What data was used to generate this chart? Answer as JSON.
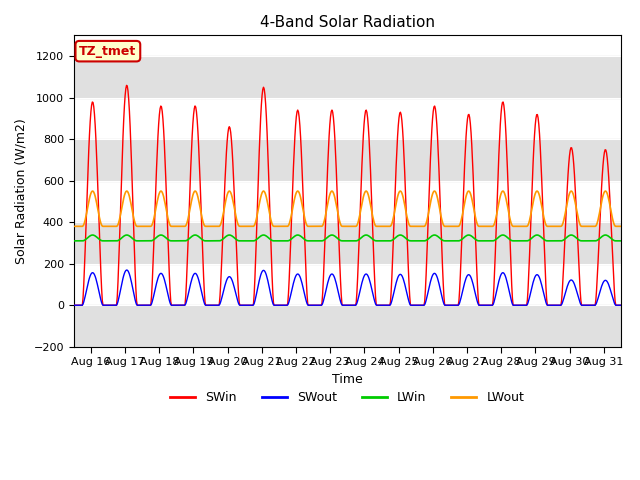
{
  "title": "4-Band Solar Radiation",
  "xlabel": "Time",
  "ylabel": "Solar Radiation (W/m2)",
  "ylim": [
    -200,
    1300
  ],
  "yticks": [
    -200,
    0,
    200,
    400,
    600,
    800,
    1000,
    1200
  ],
  "num_days": 16,
  "x_tick_labels": [
    "Aug 16",
    "Aug 17",
    "Aug 18",
    "Aug 19",
    "Aug 20",
    "Aug 21",
    "Aug 22",
    "Aug 23",
    "Aug 24",
    "Aug 25",
    "Aug 26",
    "Aug 27",
    "Aug 28",
    "Aug 29",
    "Aug 30",
    "Aug 31"
  ],
  "colors": {
    "SWin": "#ff0000",
    "SWout": "#0000ff",
    "LWin": "#00cc00",
    "LWout": "#ff9900"
  },
  "legend_label": "TZ_tmet",
  "legend_bg": "#ffffcc",
  "legend_border": "#cc0000",
  "background_color": "#ffffff",
  "band_color": "#e0e0e0",
  "SWin_peaks": [
    980,
    1060,
    960,
    960,
    860,
    1050,
    940,
    940,
    940,
    930,
    960,
    920,
    980,
    920,
    760,
    750
  ],
  "LWin_base": 310,
  "LWin_amp": 35,
  "LWout_base": 380,
  "LWout_amp": 170,
  "SWout_ratio": 0.16
}
